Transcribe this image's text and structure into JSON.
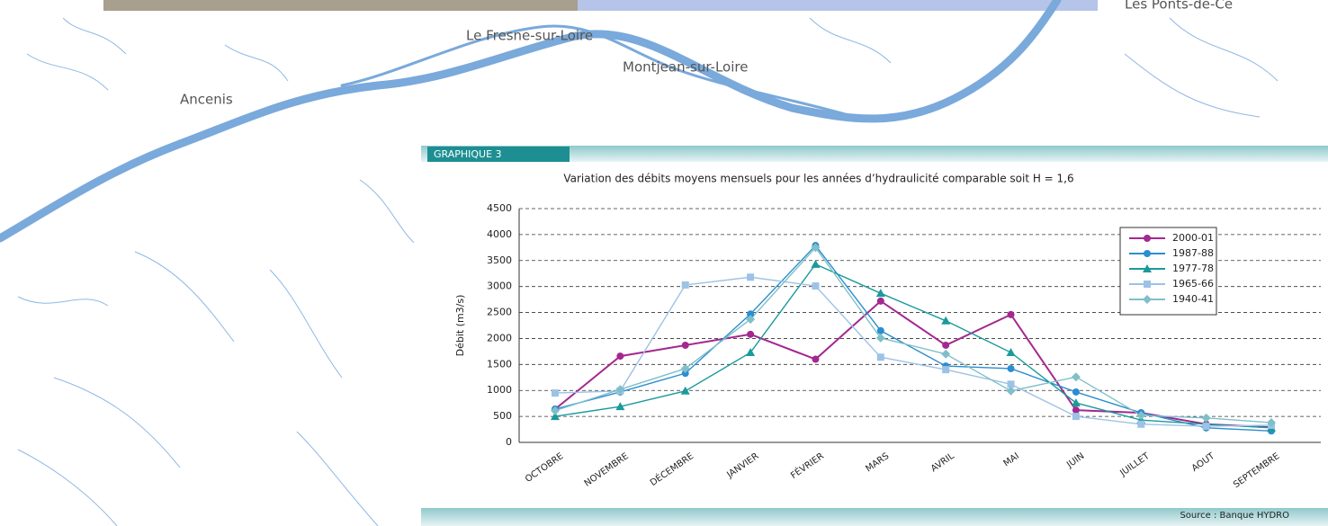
{
  "map": {
    "places": [
      "Ancenis",
      "Le Fresne-sur-Loire",
      "Montjean-sur-Loire",
      "Les Ponts-de-Cé"
    ]
  },
  "panel": {
    "label": "GRAPHIQUE 3",
    "source": "Source : Banque HYDRO"
  },
  "chart_data": {
    "type": "line",
    "title": "Variation des débits moyens mensuels pour les années d’hydraulicité comparable soit H = 1,6",
    "y_label": "Débit (m3/s)",
    "categories": [
      "OCTOBRE",
      "NOVEMBRE",
      "DÉCEMBRE",
      "JANVIER",
      "FÉVRIER",
      "MARS",
      "AVRIL",
      "MAI",
      "JUIN",
      "JUILLET",
      "AOUT",
      "SEPTEMBRE"
    ],
    "ylim": [
      0,
      4500
    ],
    "yticks": [
      0,
      500,
      1000,
      1500,
      2000,
      2500,
      3000,
      3500,
      4000,
      4500
    ],
    "grid": true,
    "series": [
      {
        "name": "2000-01",
        "color": "#a3288f",
        "marker": "circle",
        "values": [
          640,
          1660,
          1870,
          2080,
          1600,
          2720,
          1870,
          2460,
          620,
          570,
          350,
          290
        ]
      },
      {
        "name": "1987-88",
        "color": "#2a8ed0",
        "marker": "circle",
        "values": [
          640,
          970,
          1330,
          2470,
          3790,
          2150,
          1470,
          1420,
          970,
          570,
          280,
          220
        ]
      },
      {
        "name": "1977-78",
        "color": "#1b9a9b",
        "marker": "triangle",
        "values": [
          500,
          690,
          990,
          1730,
          3430,
          2870,
          2340,
          1730,
          760,
          430,
          350,
          280
        ]
      },
      {
        "name": "1965-66",
        "color": "#9dc2e6",
        "marker": "square",
        "values": [
          950,
          990,
          3030,
          3180,
          3010,
          1640,
          1400,
          1120,
          500,
          350,
          310,
          330
        ]
      },
      {
        "name": "1940-41",
        "color": "#80bfc9",
        "marker": "diamond",
        "values": [
          610,
          1020,
          1420,
          2370,
          3750,
          2010,
          1700,
          990,
          1260,
          520,
          470,
          380
        ]
      }
    ]
  }
}
